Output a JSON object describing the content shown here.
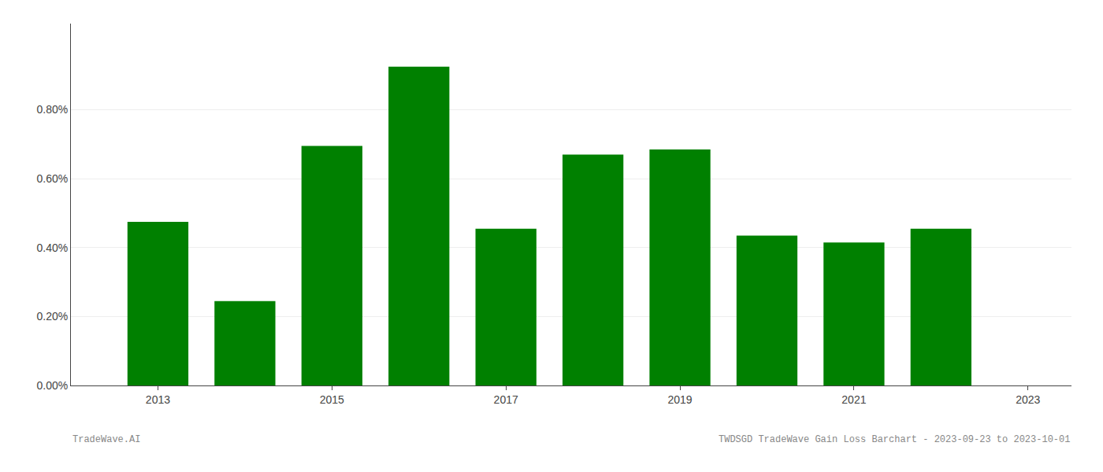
{
  "chart_data": {
    "type": "bar",
    "x": [
      2013,
      2014,
      2015,
      2016,
      2017,
      2018,
      2019,
      2020,
      2021,
      2022
    ],
    "values": [
      0.00475,
      0.00245,
      0.00695,
      0.00925,
      0.00455,
      0.0067,
      0.00685,
      0.00435,
      0.00415,
      0.00455
    ],
    "color": "#008000",
    "xlim": [
      2012.0,
      2023.5
    ],
    "xticks": [
      2013,
      2015,
      2017,
      2019,
      2021,
      2023
    ],
    "ylim": [
      0,
      0.0105
    ],
    "yticks": [
      {
        "value": 0.0,
        "label": "0.00%"
      },
      {
        "value": 0.002,
        "label": "0.20%"
      },
      {
        "value": 0.004,
        "label": "0.40%"
      },
      {
        "value": 0.006,
        "label": "0.60%"
      },
      {
        "value": 0.008,
        "label": "0.80%"
      }
    ],
    "grid": "y",
    "annotations": [
      "TradeWave.AI",
      "TWDSGD TradeWave Gain Loss Barchart - 2023-09-23 to 2023-10-01"
    ]
  }
}
